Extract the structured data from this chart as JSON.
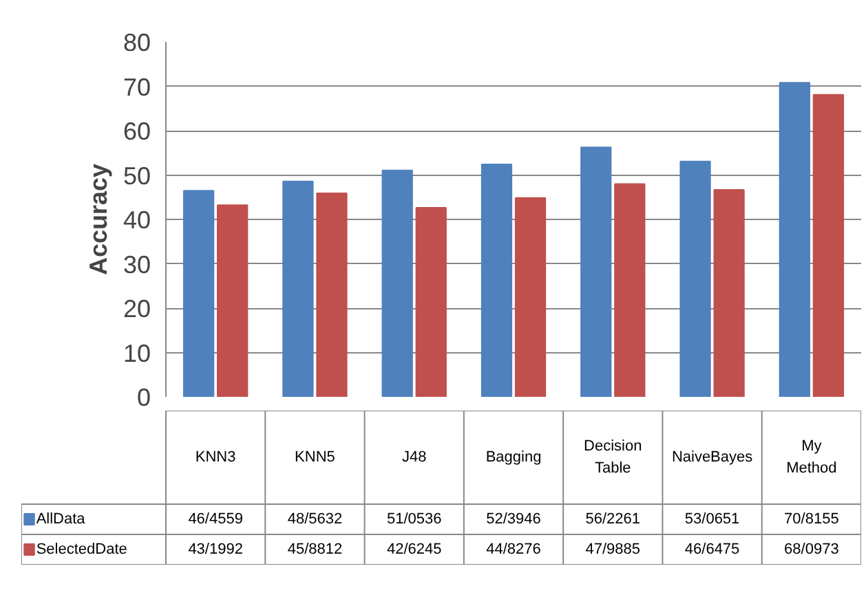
{
  "chart_data": {
    "type": "bar",
    "ylabel": "Accuracy",
    "categories": [
      "KNN3",
      "KNN5",
      "J48",
      "Bagging",
      "Decision Table",
      "NaiveBayes",
      "My Method"
    ],
    "series": [
      {
        "name": "AllData",
        "color": "#4f81bd",
        "values": [
          46.4559,
          48.5632,
          51.0536,
          52.3946,
          56.2261,
          53.0651,
          70.8155
        ],
        "value_labels": [
          "46/4559",
          "48/5632",
          "51/0536",
          "52/3946",
          "56/2261",
          "53/0651",
          "70/8155"
        ]
      },
      {
        "name": "SelectedDate",
        "color": "#c0504d",
        "values": [
          43.1992,
          45.8812,
          42.6245,
          44.8276,
          47.9885,
          46.6475,
          68.0973
        ],
        "value_labels": [
          "43/1992",
          "45/8812",
          "42/6245",
          "44/8276",
          "47/9885",
          "46/6475",
          "68/0973"
        ]
      }
    ],
    "ylim": [
      0,
      80
    ],
    "yticks": [
      0,
      10,
      20,
      30,
      40,
      50,
      60,
      70,
      80
    ],
    "grid": "y",
    "legend": "bottom"
  }
}
